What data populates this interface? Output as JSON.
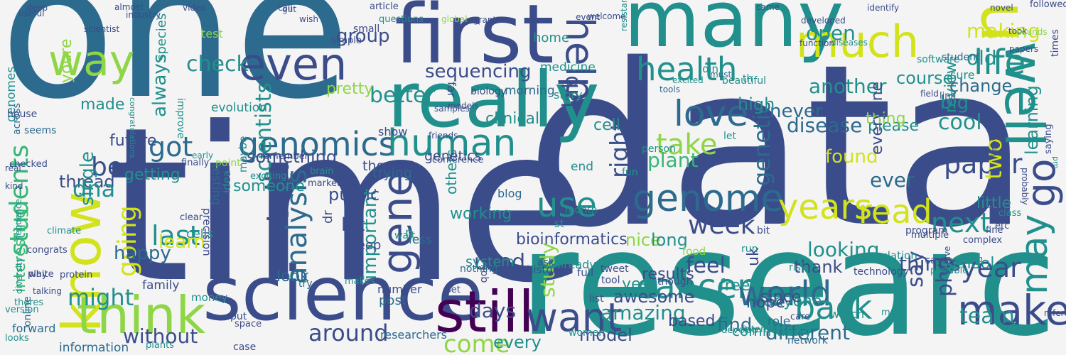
{
  "palette": {
    "background": "#f4f4f4",
    "dark_purple": "#440154",
    "indigo": "#3b4c8a",
    "blue": "#2c6a8e",
    "teal": "#21908d",
    "green": "#36b677",
    "lime": "#8ed645",
    "yellow": "#d2e21b"
  },
  "words": [
    {
      "text": "one",
      "color": "blue"
    },
    {
      "text": "data",
      "color": "indigo"
    },
    {
      "text": "time",
      "color": "indigo"
    },
    {
      "text": "research",
      "color": "teal"
    },
    {
      "text": "first",
      "color": "indigo"
    },
    {
      "text": "many",
      "color": "teal"
    },
    {
      "text": "need",
      "color": "yellow"
    },
    {
      "text": "much",
      "color": "yellow"
    },
    {
      "text": "well",
      "color": "teal"
    },
    {
      "text": "really",
      "color": "teal"
    },
    {
      "text": "science",
      "color": "indigo"
    },
    {
      "text": "know",
      "color": "yellow"
    },
    {
      "text": "think",
      "color": "lime"
    },
    {
      "text": "still",
      "color": "dark_purple"
    },
    {
      "text": "way",
      "color": "lime"
    },
    {
      "text": "even",
      "color": "indigo"
    },
    {
      "text": "genomics",
      "color": "blue"
    },
    {
      "text": "human",
      "color": "teal"
    },
    {
      "text": "health",
      "color": "teal"
    },
    {
      "text": "life",
      "color": "teal"
    },
    {
      "text": "help",
      "color": "indigo"
    },
    {
      "text": "love",
      "color": "blue"
    },
    {
      "text": "genome",
      "color": "blue"
    },
    {
      "text": "cancer",
      "color": "teal"
    },
    {
      "text": "years",
      "color": "yellow"
    },
    {
      "text": "read",
      "color": "yellow"
    },
    {
      "text": "world",
      "color": "blue"
    },
    {
      "text": "want",
      "color": "indigo"
    },
    {
      "text": "make",
      "color": "indigo"
    },
    {
      "text": "back",
      "color": "teal"
    },
    {
      "text": "may",
      "color": "teal"
    },
    {
      "text": "go",
      "color": "indigo"
    },
    {
      "text": "use",
      "color": "teal"
    },
    {
      "text": "gene",
      "color": "indigo"
    },
    {
      "text": "talk",
      "color": "indigo"
    },
    {
      "text": "analysis",
      "color": "blue"
    },
    {
      "text": "going",
      "color": "yellow"
    },
    {
      "text": "last",
      "color": "teal"
    },
    {
      "text": "best",
      "color": "indigo"
    },
    {
      "text": "got",
      "color": "blue"
    },
    {
      "text": "students",
      "color": "green"
    },
    {
      "text": "disease",
      "color": "blue"
    },
    {
      "text": "sequencing",
      "color": "indigo"
    },
    {
      "text": "cool",
      "color": "teal"
    },
    {
      "text": "making",
      "color": "yellow"
    },
    {
      "text": "week",
      "color": "indigo"
    },
    {
      "text": "paper",
      "color": "indigo"
    },
    {
      "text": "next",
      "color": "teal"
    },
    {
      "text": "year",
      "color": "indigo"
    },
    {
      "text": "phd",
      "color": "indigo"
    },
    {
      "text": "team",
      "color": "teal"
    },
    {
      "text": "take",
      "color": "lime"
    },
    {
      "text": "right",
      "color": "indigo"
    },
    {
      "text": "genetic",
      "color": "blue"
    },
    {
      "text": "better",
      "color": "teal"
    },
    {
      "text": "check",
      "color": "teal"
    },
    {
      "text": "scientists",
      "color": "teal"
    },
    {
      "text": "thread",
      "color": "indigo"
    },
    {
      "text": "always",
      "color": "teal"
    },
    {
      "text": "species",
      "color": "teal"
    },
    {
      "text": "lab",
      "color": "indigo"
    },
    {
      "text": "study",
      "color": "lime"
    },
    {
      "text": "days",
      "color": "indigo"
    },
    {
      "text": "used",
      "color": "indigo"
    },
    {
      "text": "dna",
      "color": "teal"
    },
    {
      "text": "learn",
      "color": "yellow"
    },
    {
      "text": "happy",
      "color": "blue"
    },
    {
      "text": "might",
      "color": "teal"
    },
    {
      "text": "two",
      "color": "yellow"
    },
    {
      "text": "learning",
      "color": "teal"
    },
    {
      "text": "come",
      "color": "lime"
    },
    {
      "text": "amazing",
      "color": "teal"
    },
    {
      "text": "bioinformatics",
      "color": "indigo"
    },
    {
      "text": "nice",
      "color": "lime"
    },
    {
      "text": "long",
      "color": "teal"
    },
    {
      "text": "looking",
      "color": "teal"
    },
    {
      "text": "thank",
      "color": "indigo"
    },
    {
      "text": "feel",
      "color": "indigo"
    },
    {
      "text": "things",
      "color": "indigo"
    },
    {
      "text": "say",
      "color": "indigo"
    },
    {
      "text": "every",
      "color": "teal"
    },
    {
      "text": "around",
      "color": "indigo"
    },
    {
      "text": "find",
      "color": "blue"
    },
    {
      "text": "different",
      "color": "blue"
    },
    {
      "text": "without",
      "color": "indigo"
    },
    {
      "text": "model",
      "color": "indigo"
    },
    {
      "text": "lot",
      "color": "indigo"
    },
    {
      "text": "important",
      "color": "teal"
    },
    {
      "text": "plant",
      "color": "green"
    },
    {
      "text": "found",
      "color": "yellow"
    },
    {
      "text": "ever",
      "color": "blue"
    },
    {
      "text": "open",
      "color": "teal"
    },
    {
      "text": "never",
      "color": "blue"
    },
    {
      "text": "high",
      "color": "teal"
    },
    {
      "text": "course",
      "color": "teal"
    },
    {
      "text": "another",
      "color": "teal"
    },
    {
      "text": "change",
      "color": "blue"
    },
    {
      "text": "big",
      "color": "teal"
    },
    {
      "text": "review",
      "color": "teal"
    },
    {
      "text": "old",
      "color": "teal"
    },
    {
      "text": "cell",
      "color": "teal"
    },
    {
      "text": "clinical",
      "color": "teal"
    },
    {
      "text": "group",
      "color": "indigo"
    },
    {
      "text": "future",
      "color": "indigo"
    },
    {
      "text": "getting",
      "color": "teal"
    },
    {
      "text": "made",
      "color": "teal"
    },
    {
      "text": "youre",
      "color": "lime"
    },
    {
      "text": "public",
      "color": "indigo"
    },
    {
      "text": "pretty",
      "color": "lime"
    },
    {
      "text": "something",
      "color": "indigo"
    },
    {
      "text": "someone",
      "color": "teal"
    },
    {
      "text": "single",
      "color": "teal"
    },
    {
      "text": "look",
      "color": "blue"
    },
    {
      "text": "yes",
      "color": "teal"
    },
    {
      "text": "working",
      "color": "teal"
    },
    {
      "text": "others",
      "color": "teal"
    },
    {
      "text": "results",
      "color": "indigo"
    },
    {
      "text": "awesome",
      "color": "indigo"
    },
    {
      "text": "free",
      "color": "teal"
    },
    {
      "text": "anyone",
      "color": "teal"
    },
    {
      "text": "since",
      "color": "indigo"
    },
    {
      "text": "based",
      "color": "indigo"
    },
    {
      "text": "hope",
      "color": "indigo"
    },
    {
      "text": "community",
      "color": "teal"
    },
    {
      "text": "uk",
      "color": "indigo"
    },
    {
      "text": "school",
      "color": "teal"
    },
    {
      "text": "please",
      "color": "teal"
    },
    {
      "text": "thing",
      "color": "lime"
    },
    {
      "text": "little",
      "color": "teal"
    },
    {
      "text": "everyone",
      "color": "indigo"
    },
    {
      "text": "interesting",
      "color": "green"
    },
    {
      "text": "genomes",
      "color": "teal"
    },
    {
      "text": "across",
      "color": "blue"
    },
    {
      "text": "information",
      "color": "blue"
    },
    {
      "text": "forward",
      "color": "blue"
    },
    {
      "text": "women",
      "color": "teal"
    },
    {
      "text": "researchers",
      "color": "blue"
    },
    {
      "text": "house",
      "color": "indigo"
    },
    {
      "text": "sequence",
      "color": "teal"
    },
    {
      "text": "seems",
      "color": "blue"
    },
    {
      "text": "online",
      "color": "blue"
    },
    {
      "text": "family",
      "color": "indigo"
    },
    {
      "text": "genetics",
      "color": "indigo"
    },
    {
      "text": "system",
      "color": "teal"
    },
    {
      "text": "end",
      "color": "teal"
    },
    {
      "text": "person",
      "color": "teal"
    },
    {
      "text": "join",
      "color": "teal"
    },
    {
      "text": "tools",
      "color": "blue"
    },
    {
      "text": "must",
      "color": "blue"
    },
    {
      "text": "excited",
      "color": "teal"
    },
    {
      "text": "beautiful",
      "color": "teal"
    },
    {
      "text": "software",
      "color": "teal"
    },
    {
      "text": "student",
      "color": "blue"
    },
    {
      "text": "sure",
      "color": "teal"
    },
    {
      "text": "times",
      "color": "indigo"
    },
    {
      "text": "saying",
      "color": "indigo"
    },
    {
      "text": "pm",
      "color": "teal"
    },
    {
      "text": "probably",
      "color": "indigo"
    },
    {
      "text": "congratulations",
      "color": "teal"
    },
    {
      "text": "improve",
      "color": "teal"
    },
    {
      "text": "precision",
      "color": "indigo"
    },
    {
      "text": "home",
      "color": "teal"
    },
    {
      "text": "medicine",
      "color": "teal"
    },
    {
      "text": "story",
      "color": "teal"
    },
    {
      "text": "biology",
      "color": "indigo"
    },
    {
      "text": "morning",
      "color": "blue"
    },
    {
      "text": "far",
      "color": "indigo"
    },
    {
      "text": "blog",
      "color": "blue"
    },
    {
      "text": "show",
      "color": "indigo"
    },
    {
      "text": "thought",
      "color": "indigo"
    },
    {
      "text": "trying",
      "color": "blue"
    },
    {
      "text": "dr",
      "color": "indigo"
    },
    {
      "text": "keep",
      "color": "indigo"
    },
    {
      "text": "n",
      "color": "teal"
    },
    {
      "text": "less",
      "color": "blue"
    },
    {
      "text": "st",
      "color": "teal"
    },
    {
      "text": "month",
      "color": "teal"
    },
    {
      "text": "stop",
      "color": "indigo"
    },
    {
      "text": "bit",
      "color": "indigo"
    },
    {
      "text": "run",
      "color": "teal"
    },
    {
      "text": "let",
      "color": "teal"
    },
    {
      "text": "th",
      "color": "teal"
    },
    {
      "text": "fun",
      "color": "teal"
    },
    {
      "text": "cells",
      "color": "teal"
    },
    {
      "text": "point",
      "color": "lime"
    },
    {
      "text": "evolution",
      "color": "teal"
    },
    {
      "text": "idea",
      "color": "teal"
    },
    {
      "text": "testing",
      "color": "blue"
    },
    {
      "text": "maybe",
      "color": "teal"
    },
    {
      "text": "test",
      "color": "lime"
    },
    {
      "text": "small",
      "color": "indigo"
    },
    {
      "text": "simple",
      "color": "indigo"
    },
    {
      "text": "wait",
      "color": "teal"
    },
    {
      "text": "post",
      "color": "blue"
    },
    {
      "text": "set",
      "color": "indigo"
    },
    {
      "text": "tweet",
      "color": "indigo"
    },
    {
      "text": "tool",
      "color": "indigo"
    },
    {
      "text": "code",
      "color": "teal"
    },
    {
      "text": "list",
      "color": "indigo"
    },
    {
      "text": "though",
      "color": "indigo"
    },
    {
      "text": "food",
      "color": "lime"
    },
    {
      "text": "population",
      "color": "teal"
    },
    {
      "text": "technology",
      "color": "indigo"
    },
    {
      "text": "program",
      "color": "indigo"
    },
    {
      "text": "role",
      "color": "blue"
    },
    {
      "text": "risk",
      "color": "teal"
    },
    {
      "text": "care",
      "color": "indigo"
    },
    {
      "text": "watch",
      "color": "teal"
    },
    {
      "text": "meet",
      "color": "teal"
    },
    {
      "text": "develop",
      "color": "teal"
    },
    {
      "text": "network",
      "color": "blue"
    },
    {
      "text": "interested",
      "color": "teal"
    },
    {
      "text": "multiple",
      "color": "indigo"
    },
    {
      "text": "etc",
      "color": "indigo"
    },
    {
      "text": "says",
      "color": "indigo"
    },
    {
      "text": "fine",
      "color": "indigo"
    },
    {
      "text": "possible",
      "color": "teal"
    },
    {
      "text": "complex",
      "color": "indigo"
    },
    {
      "text": "wrong",
      "color": "teal"
    },
    {
      "text": "class",
      "color": "teal"
    },
    {
      "text": "give",
      "color": "indigo"
    },
    {
      "text": "already",
      "color": "teal"
    },
    {
      "text": "full",
      "color": "indigo"
    },
    {
      "text": "ask",
      "color": "indigo"
    },
    {
      "text": "history",
      "color": "indigo"
    },
    {
      "text": "job",
      "color": "indigo"
    },
    {
      "text": "nothing",
      "color": "blue"
    },
    {
      "text": "number",
      "color": "indigo"
    },
    {
      "text": "makes",
      "color": "teal"
    },
    {
      "text": "try",
      "color": "blue"
    },
    {
      "text": "put",
      "color": "indigo"
    },
    {
      "text": "space",
      "color": "indigo"
    },
    {
      "text": "case",
      "color": "indigo"
    },
    {
      "text": "plants",
      "color": "teal"
    },
    {
      "text": "money",
      "color": "teal"
    },
    {
      "text": "version",
      "color": "teal"
    },
    {
      "text": "looks",
      "color": "teal"
    },
    {
      "text": "diversity",
      "color": "teal"
    },
    {
      "text": "theres",
      "color": "teal"
    },
    {
      "text": "talking",
      "color": "indigo"
    },
    {
      "text": "play",
      "color": "indigo"
    },
    {
      "text": "protein",
      "color": "indigo"
    },
    {
      "text": "white",
      "color": "indigo"
    },
    {
      "text": "congrats",
      "color": "indigo"
    },
    {
      "text": "climate",
      "color": "teal"
    },
    {
      "text": "checked",
      "color": "indigo"
    },
    {
      "text": "real",
      "color": "indigo"
    },
    {
      "text": "kind",
      "color": "indigo"
    },
    {
      "text": "finally",
      "color": "indigo"
    },
    {
      "text": "clear",
      "color": "indigo"
    },
    {
      "text": "brain",
      "color": "teal"
    },
    {
      "text": "market",
      "color": "indigo"
    },
    {
      "text": "early",
      "color": "teal"
    },
    {
      "text": "remember",
      "color": "indigo"
    },
    {
      "text": "exciting",
      "color": "teal"
    },
    {
      "text": "models",
      "color": "indigo"
    },
    {
      "text": "conference",
      "color": "indigo"
    },
    {
      "text": "samples",
      "color": "indigo"
    },
    {
      "text": "friends",
      "color": "indigo"
    },
    {
      "text": "article",
      "color": "indigo"
    },
    {
      "text": "questions",
      "color": "teal"
    },
    {
      "text": "deep",
      "color": "indigo"
    },
    {
      "text": "useful",
      "color": "indigo"
    },
    {
      "text": "scientist",
      "color": "indigo"
    },
    {
      "text": "industry",
      "color": "indigo"
    },
    {
      "text": "almost",
      "color": "indigo"
    },
    {
      "text": "video",
      "color": "indigo"
    },
    {
      "text": "call",
      "color": "indigo"
    },
    {
      "text": "gut",
      "color": "indigo"
    },
    {
      "text": "wish",
      "color": "indigo"
    },
    {
      "text": "global",
      "color": "lime"
    },
    {
      "text": "grant",
      "color": "indigo"
    },
    {
      "text": "event",
      "color": "indigo"
    },
    {
      "text": "welcome",
      "color": "indigo"
    },
    {
      "text": "resistance",
      "color": "teal"
    },
    {
      "text": "came",
      "color": "indigo"
    },
    {
      "text": "developed",
      "color": "indigo"
    },
    {
      "text": "function",
      "color": "indigo"
    },
    {
      "text": "diseases",
      "color": "teal"
    },
    {
      "text": "identify",
      "color": "indigo"
    },
    {
      "text": "novel",
      "color": "indigo"
    },
    {
      "text": "followed",
      "color": "indigo"
    },
    {
      "text": "took",
      "color": "indigo"
    },
    {
      "text": "sounds",
      "color": "lime"
    },
    {
      "text": "papers",
      "color": "indigo"
    },
    {
      "text": "link",
      "color": "indigo"
    },
    {
      "text": "field",
      "color": "indigo"
    },
    {
      "text": "known",
      "color": "indigo"
    },
    {
      "text": "reference",
      "color": "indigo"
    }
  ]
}
